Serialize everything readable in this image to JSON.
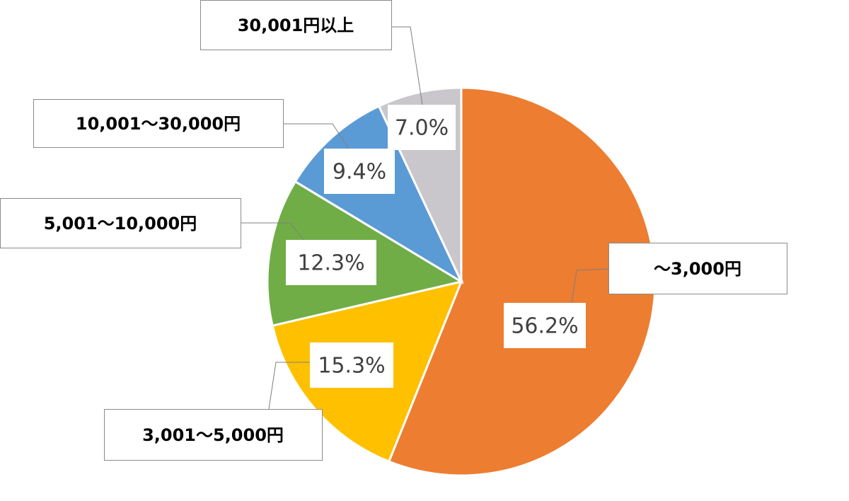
{
  "chart_data": {
    "type": "pie",
    "categories": [
      "～3,000円",
      "3,001～5,000円",
      "5,001～10,000円",
      "10,001～30,000円",
      "30,001円以上"
    ],
    "values": [
      56.2,
      15.3,
      12.3,
      9.4,
      7.0
    ],
    "value_labels": [
      "56.2%",
      "15.3%",
      "12.3%",
      "9.4%",
      "7.0%"
    ],
    "colors": [
      "#ED7D31",
      "#FFC000",
      "#70AD47",
      "#5B9BD5",
      "#C9C6CC"
    ]
  }
}
